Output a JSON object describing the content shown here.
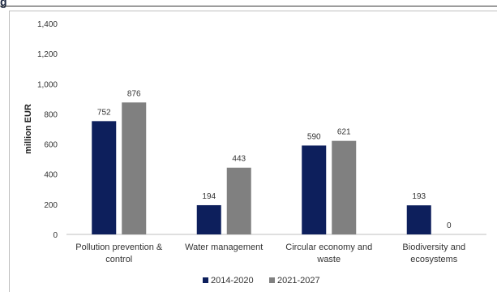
{
  "chart_data": {
    "type": "bar",
    "categories": [
      [
        "Pollution prevention &",
        "control"
      ],
      [
        "Water management"
      ],
      [
        "Circular economy and",
        "waste"
      ],
      [
        "Biodiversity and",
        "ecosystems"
      ]
    ],
    "series": [
      {
        "name": "2014-2020",
        "values": [
          752,
          194,
          590,
          193
        ],
        "color": "#0d1f5c"
      },
      {
        "name": "2021-2027",
        "values": [
          876,
          443,
          621,
          0
        ],
        "color": "#808080"
      }
    ],
    "ylabel": "million EUR",
    "ylim": [
      0,
      1400
    ],
    "yticks": [
      0,
      200,
      400,
      600,
      800,
      1000,
      1200,
      1400
    ],
    "ytick_labels": [
      "0",
      "200",
      "400",
      "600",
      "800",
      "1,000",
      "1,200",
      "1,400"
    ],
    "grid": false,
    "legend_position": "bottom-center"
  }
}
